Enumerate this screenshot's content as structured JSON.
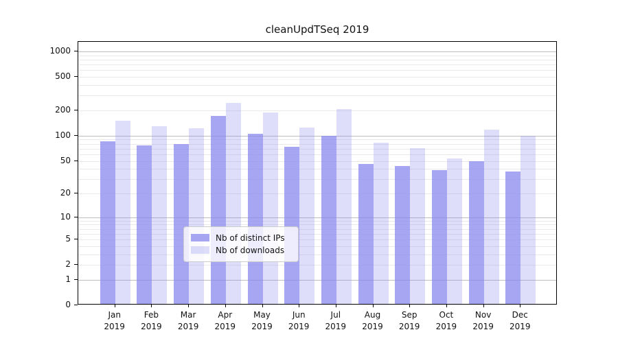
{
  "title": "cleanUpdTSeq 2019",
  "colors": {
    "bar_base": "136,136,238",
    "series_dark": "rgba(136,136,238,0.75)",
    "series_light": "rgba(136,136,238,0.28)",
    "grid_major": "#bdbdbd",
    "grid_minor": "#e9e9e9",
    "spine": "#000000",
    "legend_border": "#cccccc",
    "legend_bg": "rgba(255,255,255,0.8)"
  },
  "chart_data": {
    "type": "bar",
    "title": "cleanUpdTSeq 2019",
    "categories": [
      "Jan",
      "Feb",
      "Mar",
      "Apr",
      "May",
      "Jun",
      "Jul",
      "Aug",
      "Sep",
      "Oct",
      "Nov",
      "Dec"
    ],
    "category_year": "2019",
    "series": [
      {
        "name": "Nb of distinct IPs",
        "color": "rgba(136,136,238,0.75)",
        "values": [
          82,
          74,
          77,
          166,
          101,
          71,
          97,
          44,
          42,
          37,
          48,
          36
        ]
      },
      {
        "name": "Nb of downloads",
        "color": "rgba(136,136,238,0.28)",
        "values": [
          146,
          125,
          119,
          238,
          184,
          120,
          199,
          79,
          68,
          51,
          114,
          97
        ]
      }
    ],
    "xlabel": "",
    "ylabel": "",
    "yscale": "log1p",
    "ylim": [
      0,
      1300
    ],
    "y_ticks": [
      0,
      1,
      2,
      5,
      10,
      20,
      50,
      100,
      200,
      500,
      1000
    ],
    "y_major_grid": [
      1,
      10,
      100,
      1000
    ],
    "y_minor_grid": [
      2,
      3,
      4,
      5,
      6,
      7,
      8,
      9,
      20,
      30,
      40,
      50,
      60,
      70,
      80,
      90,
      200,
      300,
      400,
      500,
      600,
      700,
      800,
      900
    ],
    "grid": true,
    "legend_position": "lower center"
  },
  "legend": {
    "items": [
      "Nb of distinct IPs",
      "Nb of downloads"
    ]
  }
}
